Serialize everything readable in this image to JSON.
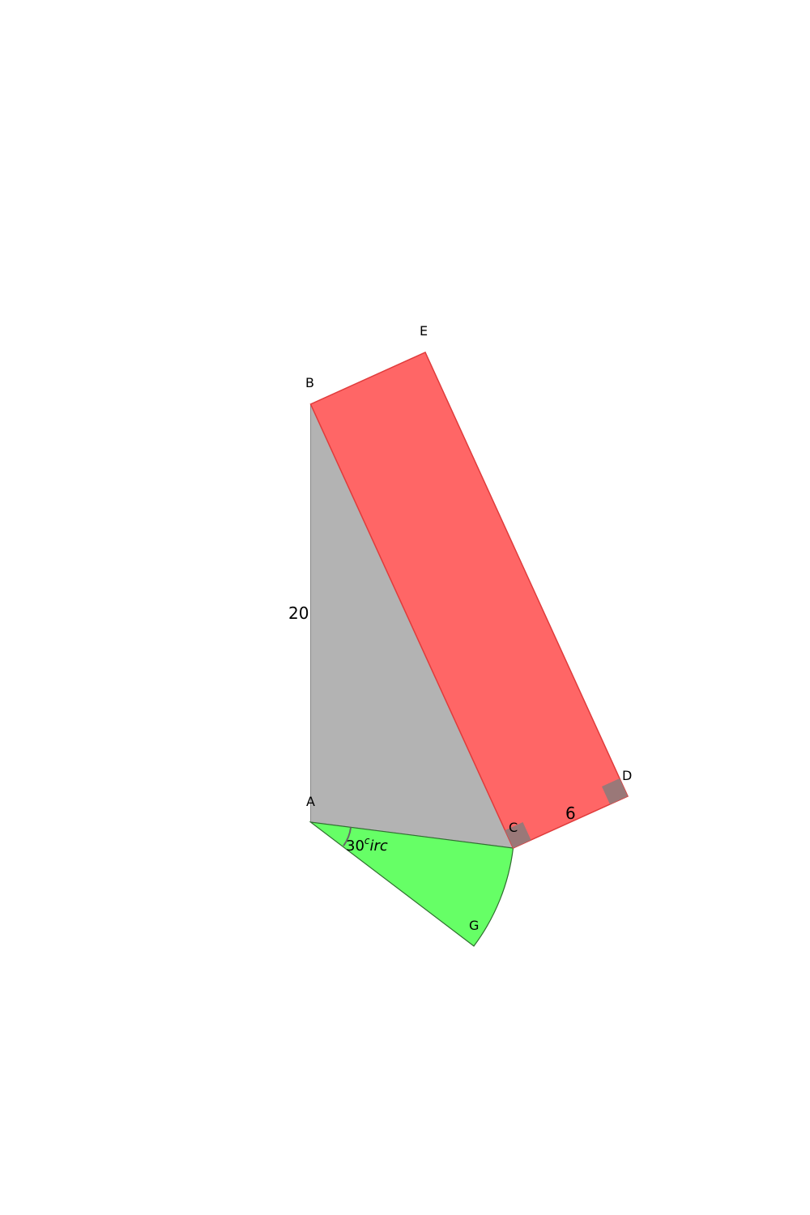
{
  "diagram": {
    "vertices": {
      "A": "A",
      "B": "B",
      "C": "C",
      "D": "D",
      "E": "E",
      "G": "G"
    },
    "measurements": {
      "side_ab": "20",
      "side_cd": "6",
      "angle_value": "30",
      "angle_superscript": "c",
      "angle_suffix": "irc"
    },
    "shapes": [
      {
        "id": "triangle-abc",
        "kind": "triangle",
        "vertices": [
          "A",
          "B",
          "C"
        ],
        "fill": "#b3b3b3"
      },
      {
        "id": "rectangle-bcde",
        "kind": "rectangle",
        "vertices": [
          "B",
          "C",
          "D",
          "E"
        ],
        "fill": "#ff6666"
      },
      {
        "id": "sector-acg",
        "kind": "sector",
        "center": "A",
        "vertices": [
          "C",
          "G"
        ],
        "fill": "#66ff66"
      }
    ],
    "colors": {
      "triangle_fill": "#b3b3b3",
      "rectangle_fill": "#ff6666",
      "rectangle_stroke": "#e03b3b",
      "sector_fill": "#66ff66",
      "sector_stroke": "#2f6f2f",
      "right_angle_marker": "#9a7878"
    }
  }
}
